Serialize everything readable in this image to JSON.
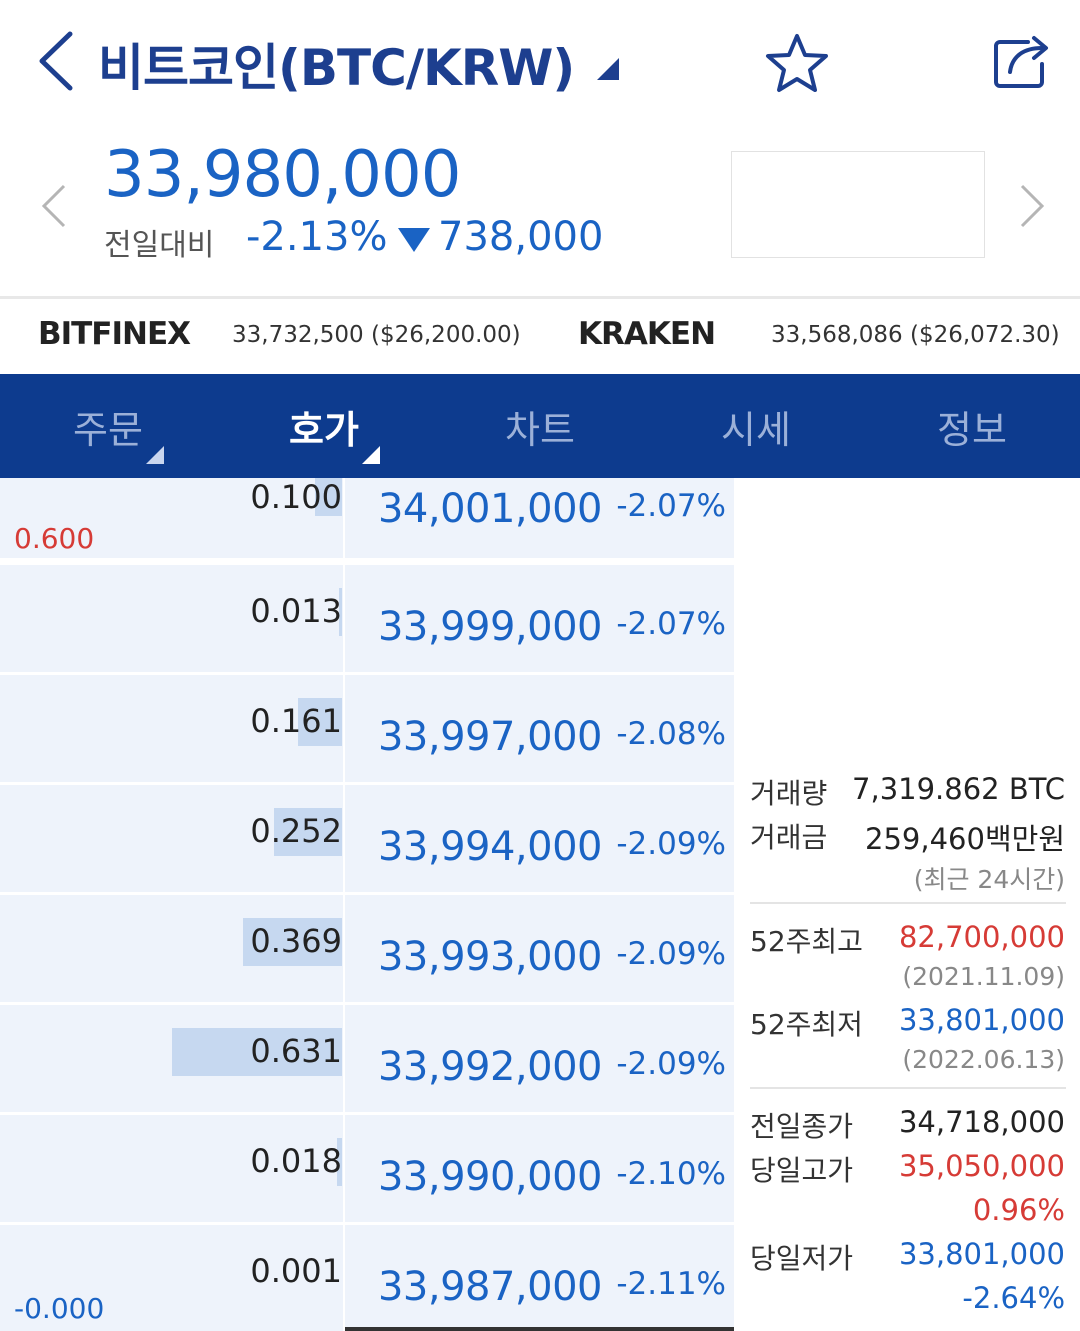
{
  "header": {
    "title": "비트코인(BTC/KRW)"
  },
  "ticker": {
    "price": "33,980,000",
    "change_label": "전일대비",
    "change_pct": "-2.13%",
    "change_amount": "738,000"
  },
  "exchanges": [
    {
      "name": "BITFINEX",
      "value": "33,732,500 ($26,200.00)"
    },
    {
      "name": "KRAKEN",
      "value": "33,568,086 ($26,072.30)"
    }
  ],
  "tabs": [
    {
      "label": "주문",
      "active": false,
      "has_caret": true
    },
    {
      "label": "호가",
      "active": true,
      "has_caret": true
    },
    {
      "label": "차트",
      "active": false,
      "has_caret": false
    },
    {
      "label": "시세",
      "active": false,
      "has_caret": false
    },
    {
      "label": "정보",
      "active": false,
      "has_caret": false
    }
  ],
  "orderbook": {
    "asks": [
      {
        "volume": "0.100",
        "price": "34,001,000",
        "pct": "-2.07%",
        "bar_fraction": 0.16
      },
      {
        "volume": "0.013",
        "price": "33,999,000",
        "pct": "-2.07%",
        "bar_fraction": 0.02
      },
      {
        "volume": "0.161",
        "price": "33,997,000",
        "pct": "-2.08%",
        "bar_fraction": 0.26
      },
      {
        "volume": "0.252",
        "price": "33,994,000",
        "pct": "-2.09%",
        "bar_fraction": 0.4
      },
      {
        "volume": "0.369",
        "price": "33,993,000",
        "pct": "-2.09%",
        "bar_fraction": 0.58
      },
      {
        "volume": "0.631",
        "price": "33,992,000",
        "pct": "-2.09%",
        "bar_fraction": 1.0
      },
      {
        "volume": "0.018",
        "price": "33,990,000",
        "pct": "-2.10%",
        "bar_fraction": 0.03
      },
      {
        "volume": "0.001",
        "price": "33,987,000",
        "pct": "-2.11%",
        "bar_fraction": 0.0
      }
    ],
    "side_top": "0.600",
    "side_bottom": "-0.000"
  },
  "info": {
    "volume_label": "거래량",
    "volume_value": "7,319.862 BTC",
    "amount_label": "거래금",
    "amount_value": "259,460백만원",
    "period_note": "(최근 24시간)",
    "high52_label": "52주최고",
    "high52_value": "82,700,000",
    "high52_date": "(2021.11.09)",
    "low52_label": "52주최저",
    "low52_value": "33,801,000",
    "low52_date": "(2022.06.13)",
    "prev_close_label": "전일종가",
    "prev_close_value": "34,718,000",
    "day_high_label": "당일고가",
    "day_high_value": "35,050,000",
    "day_high_pct": "0.96%",
    "day_low_label": "당일저가",
    "day_low_value": "33,801,000",
    "day_low_pct": "-2.64%"
  },
  "colors": {
    "brand": "#0d3b8e",
    "up": "#d63b36",
    "down": "#1a63c4"
  }
}
